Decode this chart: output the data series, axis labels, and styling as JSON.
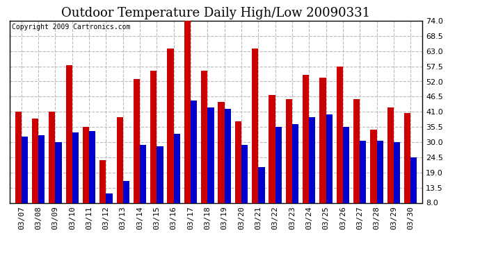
{
  "title": "Outdoor Temperature Daily High/Low 20090331",
  "copyright": "Copyright 2009 Cartronics.com",
  "dates": [
    "03/07",
    "03/08",
    "03/09",
    "03/10",
    "03/11",
    "03/12",
    "03/13",
    "03/14",
    "03/15",
    "03/16",
    "03/17",
    "03/18",
    "03/19",
    "03/20",
    "03/21",
    "03/22",
    "03/23",
    "03/24",
    "03/25",
    "03/26",
    "03/27",
    "03/28",
    "03/29",
    "03/30"
  ],
  "highs": [
    41.0,
    38.5,
    41.0,
    58.0,
    35.5,
    23.5,
    39.0,
    53.0,
    56.0,
    64.0,
    75.0,
    56.0,
    44.5,
    37.5,
    64.0,
    47.0,
    45.5,
    54.5,
    53.5,
    57.5,
    45.5,
    34.5,
    42.5,
    40.5
  ],
  "lows": [
    32.0,
    32.5,
    30.0,
    33.5,
    34.0,
    11.5,
    16.0,
    29.0,
    28.5,
    33.0,
    45.0,
    42.5,
    42.0,
    29.0,
    21.0,
    35.5,
    36.5,
    39.0,
    40.0,
    35.5,
    30.5,
    30.5,
    30.0,
    24.5
  ],
  "high_color": "#cc0000",
  "low_color": "#0000cc",
  "bg_color": "#ffffff",
  "plot_bg_color": "#ffffff",
  "grid_color": "#bbbbbb",
  "yticks": [
    8.0,
    13.5,
    19.0,
    24.5,
    30.0,
    35.5,
    41.0,
    46.5,
    52.0,
    57.5,
    63.0,
    68.5,
    74.0
  ],
  "ylim": [
    8.0,
    74.0
  ],
  "ybase": 8.0,
  "title_fontsize": 13,
  "tick_fontsize": 8,
  "bar_width": 0.38
}
